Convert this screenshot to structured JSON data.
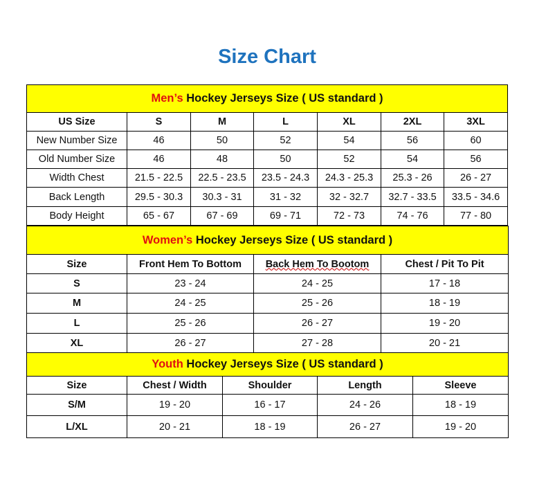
{
  "title": "Size Chart",
  "colors": {
    "title": "#1f73be",
    "header_bg": "#ffff00",
    "accent_red": "#e01010"
  },
  "men": {
    "header_accent": "Men’s",
    "header_rest": " Hockey Jerseys Size ( US standard )",
    "columns": [
      "US Size",
      "S",
      "M",
      "L",
      "XL",
      "2XL",
      "3XL"
    ],
    "rows": [
      [
        "New Number Size",
        "46",
        "50",
        "52",
        "54",
        "56",
        "60"
      ],
      [
        "Old Number Size",
        "46",
        "48",
        "50",
        "52",
        "54",
        "56"
      ],
      [
        "Width Chest",
        "21.5 - 22.5",
        "22.5 - 23.5",
        "23.5 - 24.3",
        "24.3 - 25.3",
        "25.3 - 26",
        "26 - 27"
      ],
      [
        "Back Length",
        "29.5 - 30.3",
        "30.3 - 31",
        "31 - 32",
        "32 - 32.7",
        "32.7 - 33.5",
        "33.5 - 34.6"
      ],
      [
        "Body Height",
        "65 - 67",
        "67 - 69",
        "69 - 71",
        "72 - 73",
        "74 - 76",
        "77 - 80"
      ]
    ]
  },
  "women": {
    "header_accent": "Women’s",
    "header_rest": " Hockey Jerseys Size ( US standard )",
    "columns": [
      "Size",
      "Front Hem To Bottom",
      "Back Hem To Bootom",
      "Chest / Pit To Pit"
    ],
    "rows": [
      [
        "S",
        "23 - 24",
        "24 - 25",
        "17 - 18"
      ],
      [
        "M",
        "24 - 25",
        "25 - 26",
        "18 - 19"
      ],
      [
        "L",
        "25 - 26",
        "26 - 27",
        "19 - 20"
      ],
      [
        "XL",
        "26 - 27",
        "27 - 28",
        "20 - 21"
      ]
    ]
  },
  "youth": {
    "header_accent": "Youth",
    "header_rest": " Hockey Jerseys Size ( US standard )",
    "columns": [
      "Size",
      "Chest / Width",
      "Shoulder",
      "Length",
      "Sleeve"
    ],
    "rows": [
      [
        "S/M",
        "19 - 20",
        "16 - 17",
        "24 - 26",
        "18 - 19"
      ],
      [
        "L/XL",
        "20 - 21",
        "18 - 19",
        "26 - 27",
        "19 - 20"
      ]
    ]
  }
}
